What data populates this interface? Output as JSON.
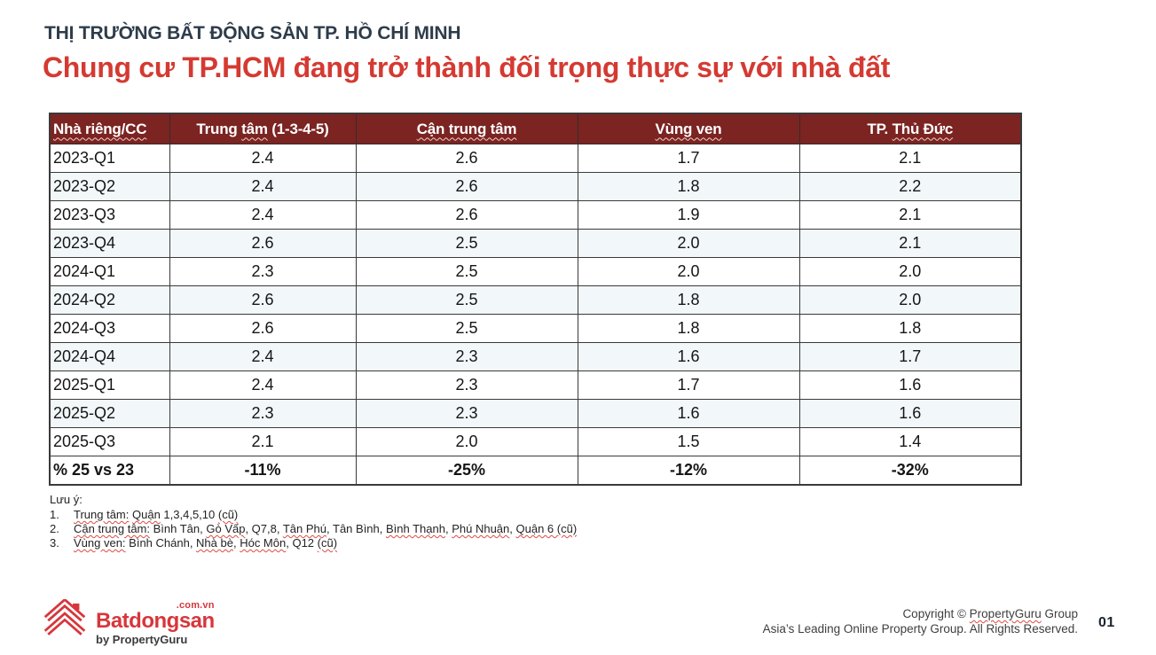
{
  "header": {
    "eyebrow": "THỊ TRƯỜNG BẤT ĐỘNG SẢN TP. HỒ CHÍ MINH",
    "title": "Chung cư TP.HCM đang trở thành đối trọng thực sự với nhà đất"
  },
  "colors": {
    "eyebrow_text": "#2e3c4a",
    "title_red": "#d43a32",
    "table_header_bg": "#7b2422",
    "table_header_text": "#ffffff",
    "brand_red": "#d6373c",
    "row_alt_bg": "#f2f7fa",
    "spellcheck_wavy_red": "#dd4a42"
  },
  "table": {
    "headers": [
      {
        "align": "left",
        "segments": [
          {
            "t": "Nhà riêng/CC",
            "w": true
          }
        ]
      },
      {
        "segments": [
          {
            "t": "Trung ",
            "w": false
          },
          {
            "t": "tâm",
            "w": true
          },
          {
            "t": " (1-3-4-5)",
            "w": false
          }
        ]
      },
      {
        "segments": [
          {
            "t": "Cận trung tâm",
            "w": true
          }
        ]
      },
      {
        "segments": [
          {
            "t": "Vùng ven",
            "w": true
          }
        ]
      },
      {
        "segments": [
          {
            "t": "TP. ",
            "w": false
          },
          {
            "t": "Thủ Đức",
            "w": true
          }
        ]
      }
    ],
    "rows": [
      {
        "label": "2023-Q1",
        "values": [
          "2.4",
          "2.6",
          "1.7",
          "2.1"
        ]
      },
      {
        "label": "2023-Q2",
        "values": [
          "2.4",
          "2.6",
          "1.8",
          "2.2"
        ]
      },
      {
        "label": "2023-Q3",
        "values": [
          "2.4",
          "2.6",
          "1.9",
          "2.1"
        ]
      },
      {
        "label": "2023-Q4",
        "values": [
          "2.6",
          "2.5",
          "2.0",
          "2.1"
        ]
      },
      {
        "label": "2024-Q1",
        "values": [
          "2.3",
          "2.5",
          "2.0",
          "2.0"
        ]
      },
      {
        "label": "2024-Q2",
        "values": [
          "2.6",
          "2.5",
          "1.8",
          "2.0"
        ]
      },
      {
        "label": "2024-Q3",
        "values": [
          "2.6",
          "2.5",
          "1.8",
          "1.8"
        ]
      },
      {
        "label": "2024-Q4",
        "values": [
          "2.4",
          "2.3",
          "1.6",
          "1.7"
        ]
      },
      {
        "label": "2025-Q1",
        "values": [
          "2.4",
          "2.3",
          "1.7",
          "1.6"
        ]
      },
      {
        "label": "2025-Q2",
        "values": [
          "2.3",
          "2.3",
          "1.6",
          "1.6"
        ]
      },
      {
        "label": "2025-Q3",
        "values": [
          "2.1",
          "2.0",
          "1.5",
          "1.4"
        ]
      },
      {
        "label": "% 25 vs 23",
        "values": [
          "-11%",
          "-25%",
          "-12%",
          "-32%"
        ],
        "bold": true
      }
    ]
  },
  "chart_data": {
    "type": "table",
    "title": "Chung cư TP.HCM đang trở thành đối trọng thực sự với nhà đất",
    "columns": [
      "Nhà riêng/CC",
      "Trung tâm (1-3-4-5)",
      "Cận trung tâm",
      "Vùng ven",
      "TP. Thủ Đức"
    ],
    "categories": [
      "2023-Q1",
      "2023-Q2",
      "2023-Q3",
      "2023-Q4",
      "2024-Q1",
      "2024-Q2",
      "2024-Q3",
      "2024-Q4",
      "2025-Q1",
      "2025-Q2",
      "2025-Q3"
    ],
    "series": [
      {
        "name": "Trung tâm (1-3-4-5)",
        "values": [
          2.4,
          2.4,
          2.4,
          2.6,
          2.3,
          2.6,
          2.6,
          2.4,
          2.4,
          2.3,
          2.1
        ]
      },
      {
        "name": "Cận trung tâm",
        "values": [
          2.6,
          2.6,
          2.6,
          2.5,
          2.5,
          2.5,
          2.5,
          2.3,
          2.3,
          2.3,
          2.0
        ]
      },
      {
        "name": "Vùng ven",
        "values": [
          1.7,
          1.8,
          1.9,
          2.0,
          2.0,
          1.8,
          1.8,
          1.6,
          1.7,
          1.6,
          1.5
        ]
      },
      {
        "name": "TP. Thủ Đức",
        "values": [
          2.1,
          2.2,
          2.1,
          2.1,
          2.0,
          2.0,
          1.8,
          1.7,
          1.6,
          1.6,
          1.4
        ]
      }
    ],
    "summary_row": {
      "label": "% 25 vs 23",
      "values": [
        "-11%",
        "-25%",
        "-12%",
        "-32%"
      ]
    }
  },
  "notes": {
    "title": "Lưu ý:",
    "items": [
      {
        "num": "1.",
        "segments": [
          {
            "t": "Trung tâm:",
            "w": true
          },
          {
            "t": " ",
            "w": false
          },
          {
            "t": "Quận",
            "w": true
          },
          {
            "t": " 1,3,4,5,10 ",
            "w": false
          },
          {
            "t": "(cũ)",
            "w": true
          }
        ]
      },
      {
        "num": "2.",
        "segments": [
          {
            "t": "Cận trung tâm:",
            "w": true
          },
          {
            "t": " Bình Tân, ",
            "w": false
          },
          {
            "t": "Gò Vấp",
            "w": true
          },
          {
            "t": ", Q7,8, ",
            "w": false
          },
          {
            "t": "Tân Phú",
            "w": true
          },
          {
            "t": ", Tân Bình, ",
            "w": false
          },
          {
            "t": "Bình Thạnh",
            "w": true
          },
          {
            "t": ", ",
            "w": false
          },
          {
            "t": "Phú Nhuận",
            "w": true
          },
          {
            "t": ", ",
            "w": false
          },
          {
            "t": "Quận 6 (cũ)",
            "w": true
          }
        ]
      },
      {
        "num": "3.",
        "segments": [
          {
            "t": "Vùng ven:",
            "w": true
          },
          {
            "t": " Bình Chánh, ",
            "w": false
          },
          {
            "t": "Nhà bè",
            "w": true
          },
          {
            "t": ", ",
            "w": false
          },
          {
            "t": "Hóc Môn",
            "w": true
          },
          {
            "t": ", Q12 ",
            "w": false
          },
          {
            "t": "(cũ)",
            "w": true
          }
        ]
      }
    ]
  },
  "footer": {
    "logo": {
      "brand": "Batdongsan",
      "domain": ".com.vn",
      "byline": "by PropertyGuru"
    },
    "copyright_segments": [
      {
        "t": "Copyright © ",
        "w": false
      },
      {
        "t": "PropertyGuru",
        "w": true
      },
      {
        "t": " Group",
        "w": false
      }
    ],
    "tagline": "Asia’s Leading Online Property Group. All Rights Reserved.",
    "page_number": "01"
  }
}
